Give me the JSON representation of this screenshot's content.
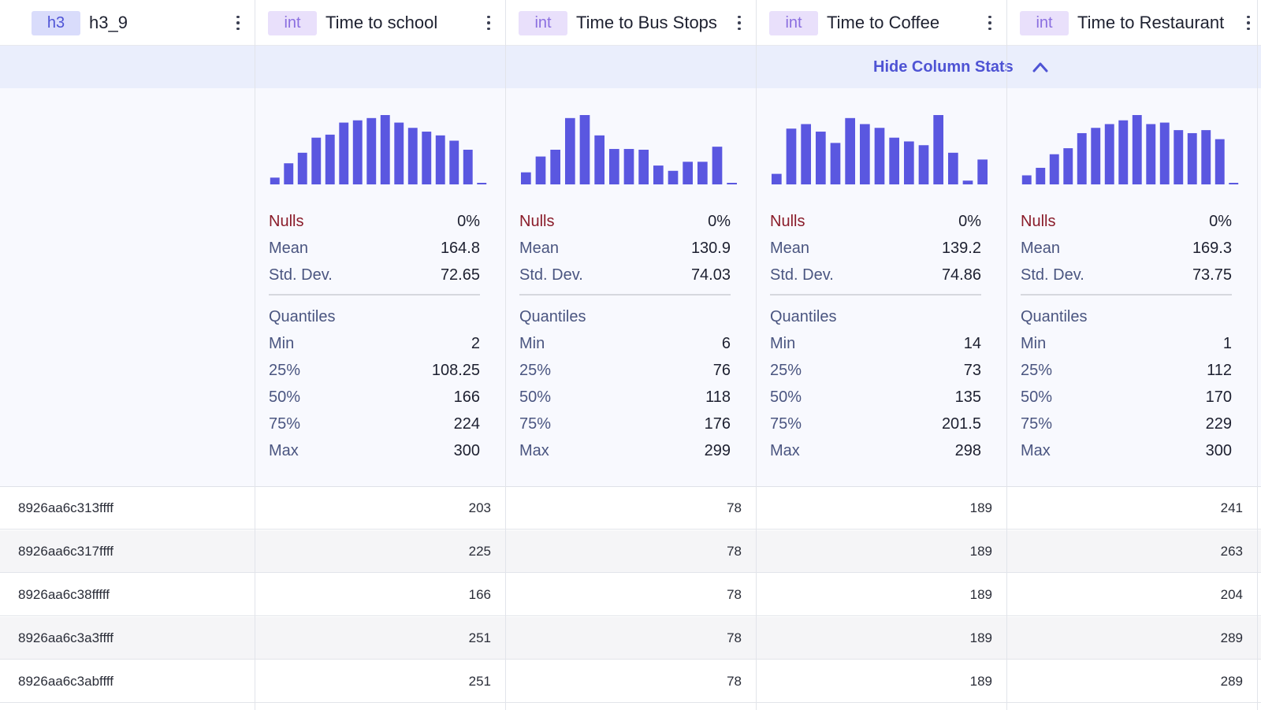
{
  "columns": [
    {
      "type": "h3",
      "name": "h3_9"
    },
    {
      "type": "int",
      "name": "Time to school"
    },
    {
      "type": "int",
      "name": "Time to Bus Stops"
    },
    {
      "type": "int",
      "name": "Time to Coffee"
    },
    {
      "type": "int",
      "name": "Time to Restaurant"
    }
  ],
  "stats_toggle_label": "Hide Column Stats",
  "stat_labels": {
    "nulls": "Nulls",
    "mean": "Mean",
    "std": "Std. Dev.",
    "quantiles": "Quantiles",
    "min": "Min",
    "q25": "25%",
    "q50": "50%",
    "q75": "75%",
    "max": "Max"
  },
  "stats": [
    {
      "nulls": "0%",
      "mean": "164.8",
      "std": "72.65",
      "min": "2",
      "q25": "108.25",
      "q50": "166",
      "q75": "224",
      "max": "300"
    },
    {
      "nulls": "0%",
      "mean": "130.9",
      "std": "74.03",
      "min": "6",
      "q25": "76",
      "q50": "118",
      "q75": "176",
      "max": "299"
    },
    {
      "nulls": "0%",
      "mean": "139.2",
      "std": "74.86",
      "min": "14",
      "q25": "73",
      "q50": "135",
      "q75": "201.5",
      "max": "298"
    },
    {
      "nulls": "0%",
      "mean": "169.3",
      "std": "73.75",
      "min": "1",
      "q25": "112",
      "q50": "170",
      "q75": "229",
      "max": "300"
    }
  ],
  "histograms": [
    [
      9,
      28,
      42,
      62,
      66,
      82,
      85,
      88,
      92,
      82,
      75,
      70,
      65,
      58,
      46,
      2
    ],
    [
      16,
      37,
      46,
      88,
      92,
      65,
      47,
      47,
      46,
      25,
      18,
      30,
      30,
      50,
      2
    ],
    [
      14,
      74,
      80,
      70,
      55,
      88,
      80,
      75,
      62,
      57,
      52,
      92,
      42,
      5,
      33
    ],
    [
      12,
      22,
      40,
      48,
      68,
      75,
      80,
      85,
      92,
      80,
      82,
      72,
      68,
      72,
      60,
      2
    ]
  ],
  "colors": {
    "bar": "#5a57e0",
    "accent": "#4e53d4"
  },
  "rows": [
    {
      "key": "8926aa6c313ffff",
      "values": [
        "203",
        "78",
        "189",
        "241"
      ]
    },
    {
      "key": "8926aa6c317ffff",
      "values": [
        "225",
        "78",
        "189",
        "263"
      ]
    },
    {
      "key": "8926aa6c38fffff",
      "values": [
        "166",
        "78",
        "189",
        "204"
      ]
    },
    {
      "key": "8926aa6c3a3ffff",
      "values": [
        "251",
        "78",
        "189",
        "289"
      ]
    },
    {
      "key": "8926aa6c3abffff",
      "values": [
        "251",
        "78",
        "189",
        "289"
      ]
    }
  ]
}
